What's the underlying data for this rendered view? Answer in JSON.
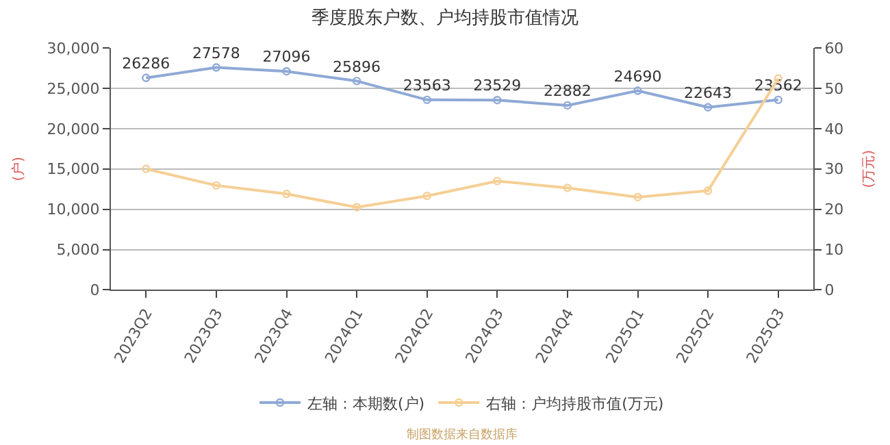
{
  "chart_data": {
    "type": "line",
    "title": "季度股东户数、户均持股市值情况",
    "ylabel": "(户)",
    "y2label": "(万元)",
    "categories": [
      "2023Q2",
      "2023Q3",
      "2023Q4",
      "2024Q1",
      "2024Q2",
      "2024Q3",
      "2024Q4",
      "2025Q1",
      "2025Q2",
      "2025Q3"
    ],
    "series": [
      {
        "name": "左轴：本期数(户)",
        "color": "#8fa9d6",
        "values": [
          26286,
          27578,
          27096,
          25896,
          23563,
          23529,
          22882,
          24690,
          22643,
          23562
        ],
        "value_labels": [
          "26286",
          "27578",
          "27096",
          "25896",
          "23563",
          "23529",
          "22882",
          "24690",
          "22643",
          "23562"
        ]
      },
      {
        "name": "右轴：户均持股市值(万元)",
        "color": "#f5cf95",
        "axis": "y2",
        "values": [
          30.0,
          25.9,
          23.8,
          20.5,
          23.3,
          27.0,
          25.3,
          23.0,
          24.6,
          52.4
        ]
      }
    ],
    "ylim": [
      0,
      30000
    ],
    "yticks": [
      {
        "value": 0,
        "label": "0"
      },
      {
        "value": 5000,
        "label": "5,000"
      },
      {
        "value": 10000,
        "label": "10,000"
      },
      {
        "value": 15000,
        "label": "15,000"
      },
      {
        "value": 20000,
        "label": "20,000"
      },
      {
        "value": 25000,
        "label": "25,000"
      },
      {
        "value": 30000,
        "label": "30,000"
      }
    ],
    "y2lim": [
      0,
      60
    ],
    "y2ticks": [
      0,
      10,
      20,
      30,
      40,
      50,
      60
    ],
    "grid": "y",
    "legend": "bottom",
    "marker": "circle",
    "line_style": "solid",
    "annotations": [
      "制图数据来自数据库"
    ]
  }
}
